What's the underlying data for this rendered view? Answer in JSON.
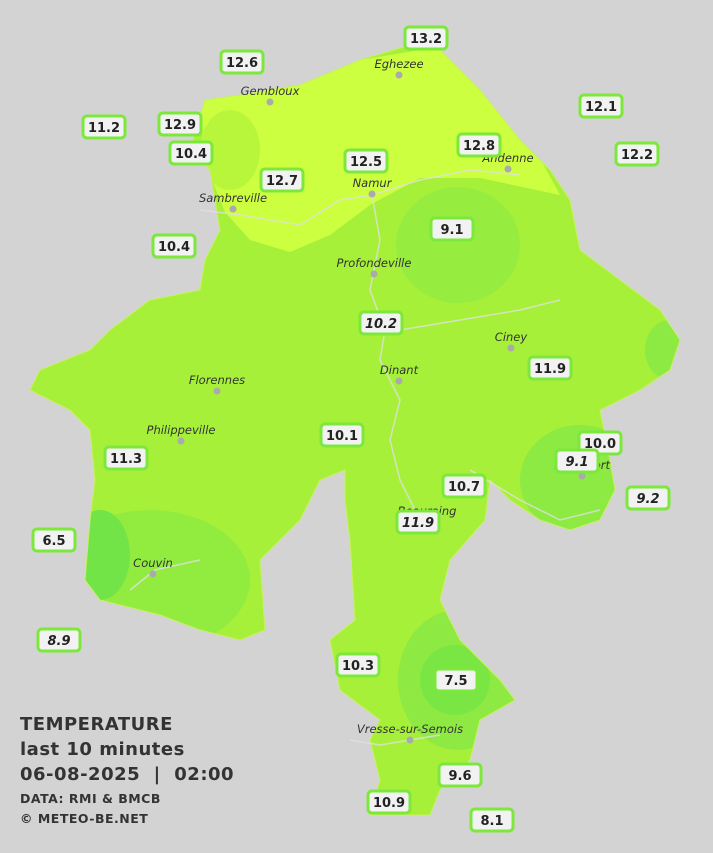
{
  "towns": [
    "Eghezee",
    "Gembloux",
    "Andenne",
    "Namur",
    "Sambreville",
    "Profondeville",
    "Ciney",
    "Dinant",
    "Florennes",
    "Philippeville",
    "Rochefort",
    "Beauraing",
    "Couvin",
    "Vresse-sur-Semois"
  ],
  "stations": [
    {
      "label": "12.6"
    },
    {
      "label": "13.2"
    },
    {
      "label": "11.2"
    },
    {
      "label": "12.9"
    },
    {
      "label": "10.4"
    },
    {
      "label": "12.7"
    },
    {
      "label": "12.5"
    },
    {
      "label": "12.8"
    },
    {
      "label": "12.1"
    },
    {
      "label": "12.2"
    },
    {
      "label": "9.1"
    },
    {
      "label": "10.4"
    },
    {
      "label": "10.2",
      "italic": true
    },
    {
      "label": "11.9"
    },
    {
      "label": "10.1"
    },
    {
      "label": "10.0"
    },
    {
      "label": "9.1",
      "italic": true
    },
    {
      "label": "11.3"
    },
    {
      "label": "9.2",
      "italic": true
    },
    {
      "label": "10.7"
    },
    {
      "label": "11.9",
      "italic": true
    },
    {
      "label": "6.5"
    },
    {
      "label": "8.9",
      "italic": true
    },
    {
      "label": "10.3"
    },
    {
      "label": "7.5"
    },
    {
      "label": "9.6"
    },
    {
      "label": "10.9"
    },
    {
      "label": "8.1"
    }
  ],
  "legend": {
    "title": "TEMPERATURE",
    "period": "last 10 minutes",
    "datetime": "06-08-2025  |  02:00",
    "source": "DATA: RMI & BMCB",
    "copyright": "© METEO-BE.NET"
  }
}
